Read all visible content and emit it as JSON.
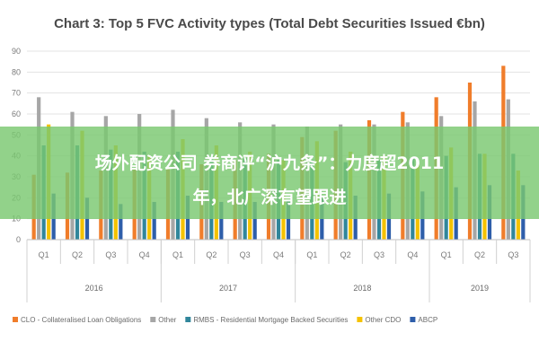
{
  "chart_data": {
    "type": "bar",
    "title": "Chart 3: Top 5 FVC Activity types (Total Debt Securities Issued €bn)",
    "ylim": [
      0,
      90
    ],
    "yticks": [
      0,
      10,
      20,
      30,
      40,
      50,
      60,
      70,
      80,
      90
    ],
    "grid": true,
    "legend_position": "bottom",
    "groups": [
      {
        "year": "2016",
        "quarters": [
          "Q1",
          "Q2",
          "Q3",
          "Q4"
        ]
      },
      {
        "year": "2017",
        "quarters": [
          "Q1",
          "Q2",
          "Q3",
          "Q4"
        ]
      },
      {
        "year": "2018",
        "quarters": [
          "Q1",
          "Q2",
          "Q3",
          "Q4"
        ]
      },
      {
        "year": "2019",
        "quarters": [
          "Q1",
          "Q2",
          "Q3"
        ]
      }
    ],
    "categories": [
      "Q1",
      "Q2",
      "Q3",
      "Q4",
      "Q1",
      "Q2",
      "Q3",
      "Q4",
      "Q1",
      "Q2",
      "Q3",
      "Q4",
      "Q1",
      "Q2",
      "Q3"
    ],
    "series": [
      {
        "name": "CLO - Collateralised Loan Obligations",
        "color": "#f07d2b",
        "values": [
          31,
          32,
          33,
          34,
          34,
          36,
          38,
          41,
          49,
          52,
          57,
          61,
          68,
          75,
          83
        ]
      },
      {
        "name": "Other",
        "color": "#a6a6a6",
        "values": [
          68,
          61,
          59,
          60,
          62,
          58,
          56,
          55,
          54,
          55,
          55,
          56,
          59,
          66,
          67
        ]
      },
      {
        "name": "RMBS - Residential Mortgage Backed Securities",
        "color": "#31869b",
        "values": [
          45,
          45,
          43,
          42,
          42,
          40,
          39,
          38,
          38,
          37,
          38,
          39,
          40,
          41,
          41
        ]
      },
      {
        "name": "Other CDO",
        "color": "#f5c200",
        "values": [
          55,
          52,
          45,
          40,
          48,
          45,
          42,
          38,
          47,
          42,
          40,
          36,
          44,
          41,
          33
        ]
      },
      {
        "name": "ABCP",
        "color": "#2e5eaa",
        "values": [
          22,
          20,
          17,
          18,
          21,
          18,
          18,
          19,
          20,
          21,
          22,
          23,
          25,
          26,
          26
        ]
      }
    ]
  },
  "watermark": {
    "line1": "场外配资公司 券商评“沪九条”：力度超2011",
    "line2": "年，北广深有望跟进"
  }
}
